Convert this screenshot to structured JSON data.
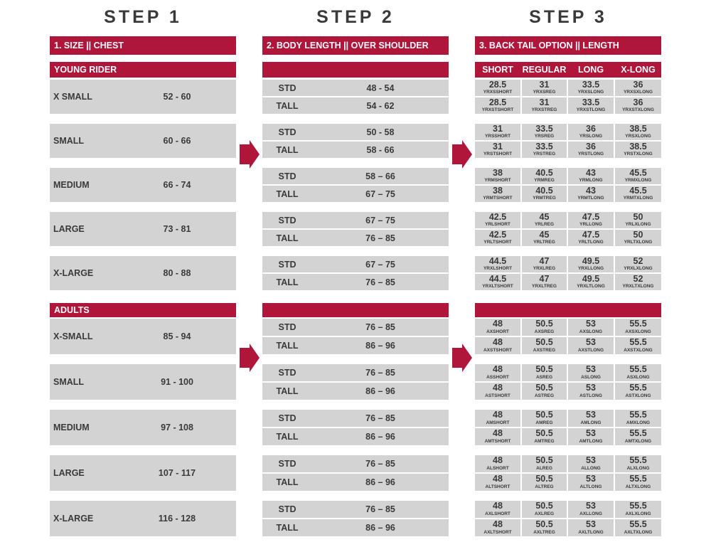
{
  "steps": [
    "STEP 1",
    "STEP 2",
    "STEP 3"
  ],
  "headers": [
    "1. SIZE  ||  CHEST",
    "2. BODY LENGTH  ||  OVER SHOULDER",
    "3. BACK TAIL OPTION  ||  LENGTH"
  ],
  "tail_columns": [
    "SHORT",
    "REGULAR",
    "LONG",
    "X-LONG"
  ],
  "groups": [
    {
      "title": "YOUNG RIDER",
      "sizes": [
        {
          "name": "X SMALL",
          "chest": "52 - 60",
          "rows": [
            {
              "fit": "STD",
              "length": "48 - 54",
              "tails": [
                {
                  "value": "28.5",
                  "code": "YRXSSHORT"
                },
                {
                  "value": "31",
                  "code": "YRXSREG"
                },
                {
                  "value": "33.5",
                  "code": "YRXSLONG"
                },
                {
                  "value": "36",
                  "code": "YRXSXLONG"
                }
              ]
            },
            {
              "fit": "TALL",
              "length": "54 - 62",
              "tails": [
                {
                  "value": "28.5",
                  "code": "YRXSTSHORT"
                },
                {
                  "value": "31",
                  "code": "YRXSTREG"
                },
                {
                  "value": "33.5",
                  "code": "YRXSTLONG"
                },
                {
                  "value": "36",
                  "code": "YRXSTXLONG"
                }
              ]
            }
          ]
        },
        {
          "name": "SMALL",
          "chest": "60 - 66",
          "rows": [
            {
              "fit": "STD",
              "length": "50 - 58",
              "tails": [
                {
                  "value": "31",
                  "code": "YRSSHORT"
                },
                {
                  "value": "33.5",
                  "code": "YRSREG"
                },
                {
                  "value": "36",
                  "code": "YRSLONG"
                },
                {
                  "value": "38.5",
                  "code": "YRSXLONG"
                }
              ]
            },
            {
              "fit": "TALL",
              "length": "58 - 66",
              "tails": [
                {
                  "value": "31",
                  "code": "YRSTSHORT"
                },
                {
                  "value": "33.5",
                  "code": "YRSTREG"
                },
                {
                  "value": "36",
                  "code": "YRSTLONG"
                },
                {
                  "value": "38.5",
                  "code": "YRSTXLONG"
                }
              ]
            }
          ]
        },
        {
          "name": "MEDIUM",
          "chest": "66 - 74",
          "rows": [
            {
              "fit": "STD",
              "length": "58 – 66",
              "tails": [
                {
                  "value": "38",
                  "code": "YRMSHORT"
                },
                {
                  "value": "40.5",
                  "code": "YRMREG"
                },
                {
                  "value": "43",
                  "code": "YRMLONG"
                },
                {
                  "value": "45.5",
                  "code": "YRMXLONG"
                }
              ]
            },
            {
              "fit": "TALL",
              "length": "67 – 75",
              "tails": [
                {
                  "value": "38",
                  "code": "YRMTSHORT"
                },
                {
                  "value": "40.5",
                  "code": "YRMTREG"
                },
                {
                  "value": "43",
                  "code": "YRMTLONG"
                },
                {
                  "value": "45.5",
                  "code": "YRMTXLONG"
                }
              ]
            }
          ]
        },
        {
          "name": "LARGE",
          "chest": "73 - 81",
          "rows": [
            {
              "fit": "STD",
              "length": "67 – 75",
              "tails": [
                {
                  "value": "42.5",
                  "code": "YRLSHORT"
                },
                {
                  "value": "45",
                  "code": "YRLREG"
                },
                {
                  "value": "47.5",
                  "code": "YRLLONG"
                },
                {
                  "value": "50",
                  "code": "YRLXLONG"
                }
              ]
            },
            {
              "fit": "TALL",
              "length": "76 – 85",
              "tails": [
                {
                  "value": "42.5",
                  "code": "YRLTSHORT"
                },
                {
                  "value": "45",
                  "code": "YRLTREG"
                },
                {
                  "value": "47.5",
                  "code": "YRLTLONG"
                },
                {
                  "value": "50",
                  "code": "YRLTXLONG"
                }
              ]
            }
          ]
        },
        {
          "name": "X-LARGE",
          "chest": "80 - 88",
          "rows": [
            {
              "fit": "STD",
              "length": "67 – 75",
              "tails": [
                {
                  "value": "44.5",
                  "code": "YRXLSHORT"
                },
                {
                  "value": "47",
                  "code": "YRXLREG"
                },
                {
                  "value": "49.5",
                  "code": "YRXLLONG"
                },
                {
                  "value": "52",
                  "code": "YRXLXLONG"
                }
              ]
            },
            {
              "fit": "TALL",
              "length": "76 – 85",
              "tails": [
                {
                  "value": "44.5",
                  "code": "YRXLTSHORT"
                },
                {
                  "value": "47",
                  "code": "YRXLTREG"
                },
                {
                  "value": "49.5",
                  "code": "YRXLTLONG"
                },
                {
                  "value": "52",
                  "code": "YRXLTXLONG"
                }
              ]
            }
          ]
        }
      ]
    },
    {
      "title": "ADULTS",
      "sizes": [
        {
          "name": "X-SMALL",
          "chest": "85 - 94",
          "rows": [
            {
              "fit": "STD",
              "length": "76 – 85",
              "tails": [
                {
                  "value": "48",
                  "code": "AXSHORT"
                },
                {
                  "value": "50.5",
                  "code": "AXSREG"
                },
                {
                  "value": "53",
                  "code": "AXSLONG"
                },
                {
                  "value": "55.5",
                  "code": "AXSXLONG"
                }
              ]
            },
            {
              "fit": "TALL",
              "length": "86 – 96",
              "tails": [
                {
                  "value": "48",
                  "code": "AXSTSHORT"
                },
                {
                  "value": "50.5",
                  "code": "AXSTREG"
                },
                {
                  "value": "53",
                  "code": "AXSTLONG"
                },
                {
                  "value": "55.5",
                  "code": "AXSTXLONG"
                }
              ]
            }
          ]
        },
        {
          "name": "SMALL",
          "chest": "91 - 100",
          "rows": [
            {
              "fit": "STD",
              "length": "76 – 85",
              "tails": [
                {
                  "value": "48",
                  "code": "ASSHORT"
                },
                {
                  "value": "50.5",
                  "code": "ASREG"
                },
                {
                  "value": "53",
                  "code": "ASLONG"
                },
                {
                  "value": "55.5",
                  "code": "ASXLONG"
                }
              ]
            },
            {
              "fit": "TALL",
              "length": "86 – 96",
              "tails": [
                {
                  "value": "48",
                  "code": "ASTSHORT"
                },
                {
                  "value": "50.5",
                  "code": "ASTREG"
                },
                {
                  "value": "53",
                  "code": "ASTLONG"
                },
                {
                  "value": "55.5",
                  "code": "ASTXLONG"
                }
              ]
            }
          ]
        },
        {
          "name": "MEDIUM",
          "chest": "97 - 108",
          "rows": [
            {
              "fit": "STD",
              "length": "76 – 85",
              "tails": [
                {
                  "value": "48",
                  "code": "AMSHORT"
                },
                {
                  "value": "50.5",
                  "code": "AMREG"
                },
                {
                  "value": "53",
                  "code": "AMLONG"
                },
                {
                  "value": "55.5",
                  "code": "AMXLONG"
                }
              ]
            },
            {
              "fit": "TALL",
              "length": "86 – 96",
              "tails": [
                {
                  "value": "48",
                  "code": "AMTSHORT"
                },
                {
                  "value": "50.5",
                  "code": "AMTREG"
                },
                {
                  "value": "53",
                  "code": "AMTLONG"
                },
                {
                  "value": "55.5",
                  "code": "AMTXLONG"
                }
              ]
            }
          ]
        },
        {
          "name": "LARGE",
          "chest": "107 - 117",
          "rows": [
            {
              "fit": "STD",
              "length": "76 – 85",
              "tails": [
                {
                  "value": "48",
                  "code": "ALSHORT"
                },
                {
                  "value": "50.5",
                  "code": "ALREG"
                },
                {
                  "value": "53",
                  "code": "ALLONG"
                },
                {
                  "value": "55.5",
                  "code": "ALXLONG"
                }
              ]
            },
            {
              "fit": "TALL",
              "length": "86 – 96",
              "tails": [
                {
                  "value": "48",
                  "code": "ALTSHORT"
                },
                {
                  "value": "50.5",
                  "code": "ALTREG"
                },
                {
                  "value": "53",
                  "code": "ALTLONG"
                },
                {
                  "value": "55.5",
                  "code": "ALTXLONG"
                }
              ]
            }
          ]
        },
        {
          "name": "X-LARGE",
          "chest": "116 - 128",
          "rows": [
            {
              "fit": "STD",
              "length": "76 – 85",
              "tails": [
                {
                  "value": "48",
                  "code": "AXLSHORT"
                },
                {
                  "value": "50.5",
                  "code": "AXLREG"
                },
                {
                  "value": "53",
                  "code": "AXLLONG"
                },
                {
                  "value": "55.5",
                  "code": "AXLXLONG"
                }
              ]
            },
            {
              "fit": "TALL",
              "length": "86 – 96",
              "tails": [
                {
                  "value": "48",
                  "code": "AXLTSHORT"
                },
                {
                  "value": "50.5",
                  "code": "AXLTREG"
                },
                {
                  "value": "53",
                  "code": "AXLTLONG"
                },
                {
                  "value": "55.5",
                  "code": "AXLTXLONG"
                }
              ]
            }
          ]
        }
      ]
    }
  ]
}
